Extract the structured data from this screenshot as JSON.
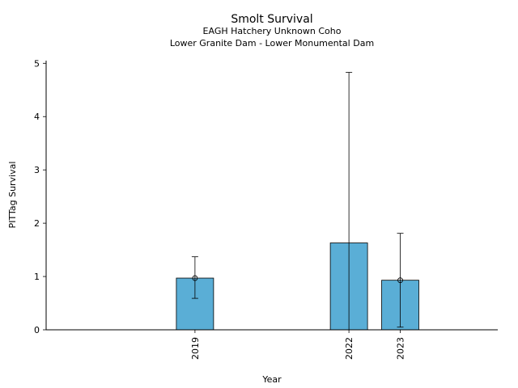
{
  "chart_data": {
    "type": "bar",
    "title": "Smolt Survival",
    "subtitle_lines": [
      "EAGH Hatchery Unknown Coho",
      "Lower Granite Dam - Lower Monumental Dam"
    ],
    "xlabel": "Year",
    "ylabel": "PITTag Survival",
    "x": [
      2019,
      2022,
      2023
    ],
    "x_tick_labels": [
      "2019",
      "2022",
      "2023"
    ],
    "values": [
      0.97,
      1.63,
      0.93
    ],
    "error_low": [
      0.59,
      0.0,
      0.05
    ],
    "error_high": [
      1.37,
      4.83,
      1.81
    ],
    "point_estimate_markers": [
      0.97,
      null,
      0.93
    ],
    "xlim": [
      2016.1,
      2024.9
    ],
    "ylim": [
      0,
      5.05
    ],
    "y_ticks": [
      0,
      1,
      2,
      3,
      4,
      5
    ],
    "y_tick_labels": [
      "0",
      "1",
      "2",
      "3",
      "4",
      "5"
    ],
    "bar_color": "#5aaed6",
    "edge_color": "#000000",
    "grid": false,
    "legend": "none"
  }
}
